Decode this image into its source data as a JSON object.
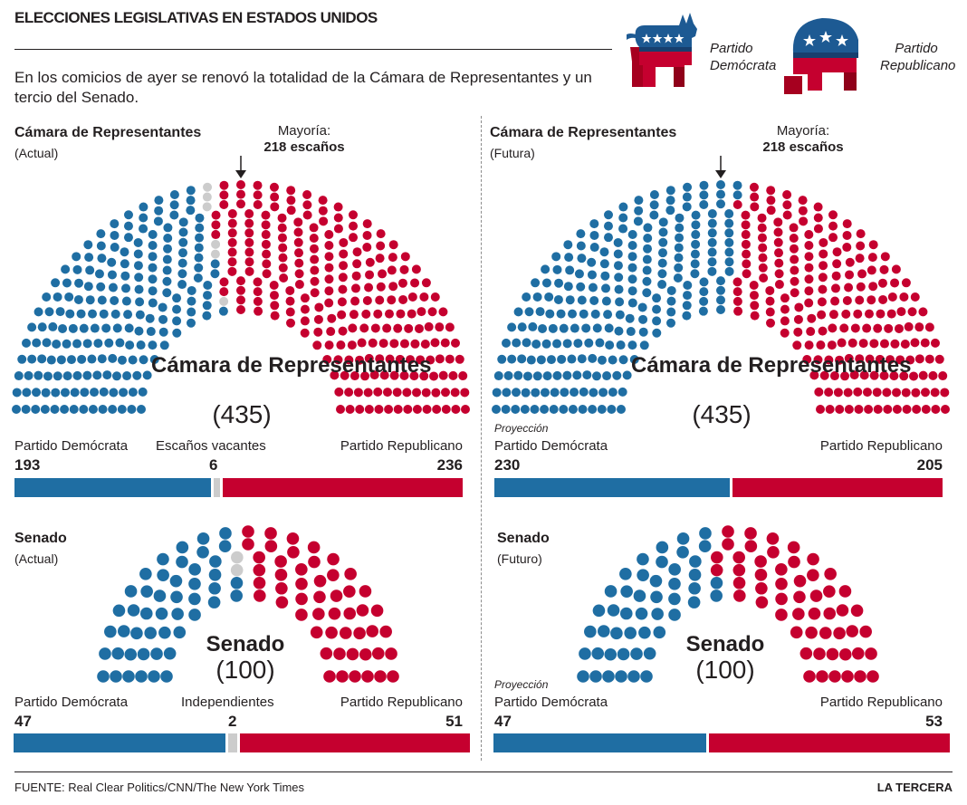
{
  "title": "ELECCIONES LEGISLATIVAS EN ESTADOS UNIDOS",
  "intro": "En los comicios de ayer se renovó la totalidad de la Cámara de Representantes y un tercio del Senado.",
  "legend": {
    "dem_label": "Partido Demócrata",
    "rep_label": "Partido Republicano"
  },
  "colors": {
    "dem": "#1f6ea3",
    "rep": "#c5002f",
    "vacant": "#cccccc"
  },
  "footer": {
    "source": "FUENTE: Real Clear Politics/CNN/The New York Times",
    "brand": "LA TERCERA"
  },
  "chart_data": [
    {
      "type": "parliament",
      "title": "Cámara de Representantes",
      "subtitle": "(Actual)",
      "center_title": "Cámara de Representantes",
      "center_total": "(435)",
      "majority_label": "Mayoría:",
      "majority_value": "218 escaños",
      "total": 435,
      "series": [
        {
          "name": "Partido Demócrata",
          "value": 193,
          "color": "#1f6ea3"
        },
        {
          "name": "Escaños vacantes",
          "value": 6,
          "color": "#cccccc"
        },
        {
          "name": "Partido Republicano",
          "value": 236,
          "color": "#c5002f"
        }
      ]
    },
    {
      "type": "parliament",
      "title": "Cámara de Representantes",
      "subtitle": "(Futura)",
      "center_title": "Cámara de Representantes",
      "center_total": "(435)",
      "majority_label": "Mayoría:",
      "majority_value": "218 escaños",
      "note": "Proyección",
      "total": 435,
      "series": [
        {
          "name": "Partido Demócrata",
          "value": 230,
          "color": "#1f6ea3"
        },
        {
          "name": "Partido Republicano",
          "value": 205,
          "color": "#c5002f"
        }
      ]
    },
    {
      "type": "parliament",
      "title": "Senado",
      "subtitle": "(Actual)",
      "center_title": "Senado",
      "center_total": "(100)",
      "total": 100,
      "series": [
        {
          "name": "Partido Demócrata",
          "value": 47,
          "color": "#1f6ea3"
        },
        {
          "name": "Independientes",
          "value": 2,
          "color": "#cccccc"
        },
        {
          "name": "Partido Republicano",
          "value": 51,
          "color": "#c5002f"
        }
      ]
    },
    {
      "type": "parliament",
      "title": "Senado",
      "subtitle": "(Futuro)",
      "center_title": "Senado",
      "center_total": "(100)",
      "note": "Proyección",
      "total": 100,
      "series": [
        {
          "name": "Partido Demócrata",
          "value": 47,
          "color": "#1f6ea3"
        },
        {
          "name": "Partido Republicano",
          "value": 53,
          "color": "#c5002f"
        }
      ]
    }
  ]
}
